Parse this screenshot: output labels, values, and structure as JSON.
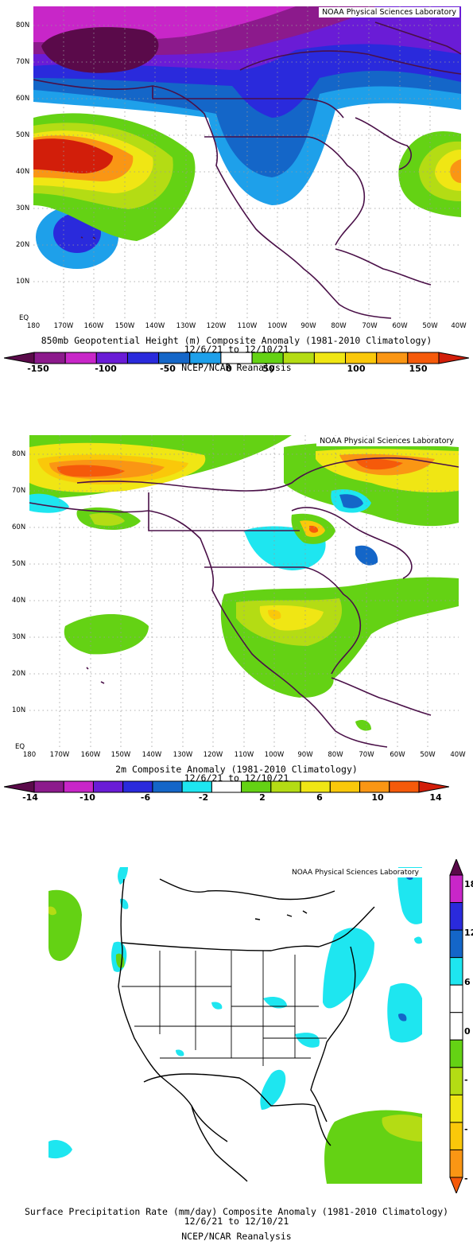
{
  "credit": "NOAA Physical Sciences Laboratory",
  "lat_ticks": [
    "80N",
    "70N",
    "60N",
    "50N",
    "40N",
    "30N",
    "20N",
    "10N",
    "EQ"
  ],
  "lon_ticks": [
    "180",
    "170W",
    "160W",
    "150W",
    "140W",
    "130W",
    "120W",
    "110W",
    "100W",
    "90W",
    "80W",
    "70W",
    "60W",
    "50W",
    "40W"
  ],
  "panel1": {
    "title": "850mb Geopotential Height (m) Composite Anomaly (1981-2010 Climatology)",
    "dates": "12/6/21  to 12/10/21",
    "source": "NCEP/NCAR Reanalysis",
    "colorbar_ticks": [
      "-150",
      "-100",
      "-50",
      "0",
      "50",
      "100",
      "150"
    ],
    "colors": [
      "#5a0a4a",
      "#8c1a8c",
      "#c826c8",
      "#6a1cd6",
      "#2a2adc",
      "#1466c8",
      "#1ea0ea",
      "#ffffff",
      "#64d214",
      "#b4dc14",
      "#f0e614",
      "#fac80a",
      "#fa9614",
      "#f55a0a",
      "#d21e0a"
    ]
  },
  "panel2": {
    "title": "2m    Composite Anomaly (1981-2010 Climatology)",
    "dates": "12/6/21  to 12/10/21",
    "colorbar_ticks": [
      "-14",
      "-10",
      "-6",
      "-2",
      "2",
      "6",
      "10",
      "14"
    ],
    "colors": [
      "#5a0a4a",
      "#8c1a8c",
      "#c826c8",
      "#6a1cd6",
      "#2a2adc",
      "#1466c8",
      "#1ee6f0",
      "#ffffff",
      "#64d214",
      "#b4dc14",
      "#f0e614",
      "#fac80a",
      "#fa9614",
      "#f55a0a",
      "#d21e0a"
    ]
  },
  "panel3": {
    "title": "Surface Precipitation Rate (mm/day) Composite Anomaly (1981-2010 Climatology)",
    "dates": "12/6/21  to 12/10/21",
    "source": "NCEP/NCAR Reanalysis",
    "colorbar_ticks": [
      "18",
      "12",
      "6",
      "0",
      "-",
      "-",
      "-"
    ],
    "colors": [
      "#5a0a4a",
      "#c826c8",
      "#2a2adc",
      "#1466c8",
      "#1ee6f0",
      "#ffffff",
      "#ffffff",
      "#64d214",
      "#b4dc14",
      "#f0e614",
      "#fac80a",
      "#fa9614",
      "#f55a0a"
    ]
  }
}
